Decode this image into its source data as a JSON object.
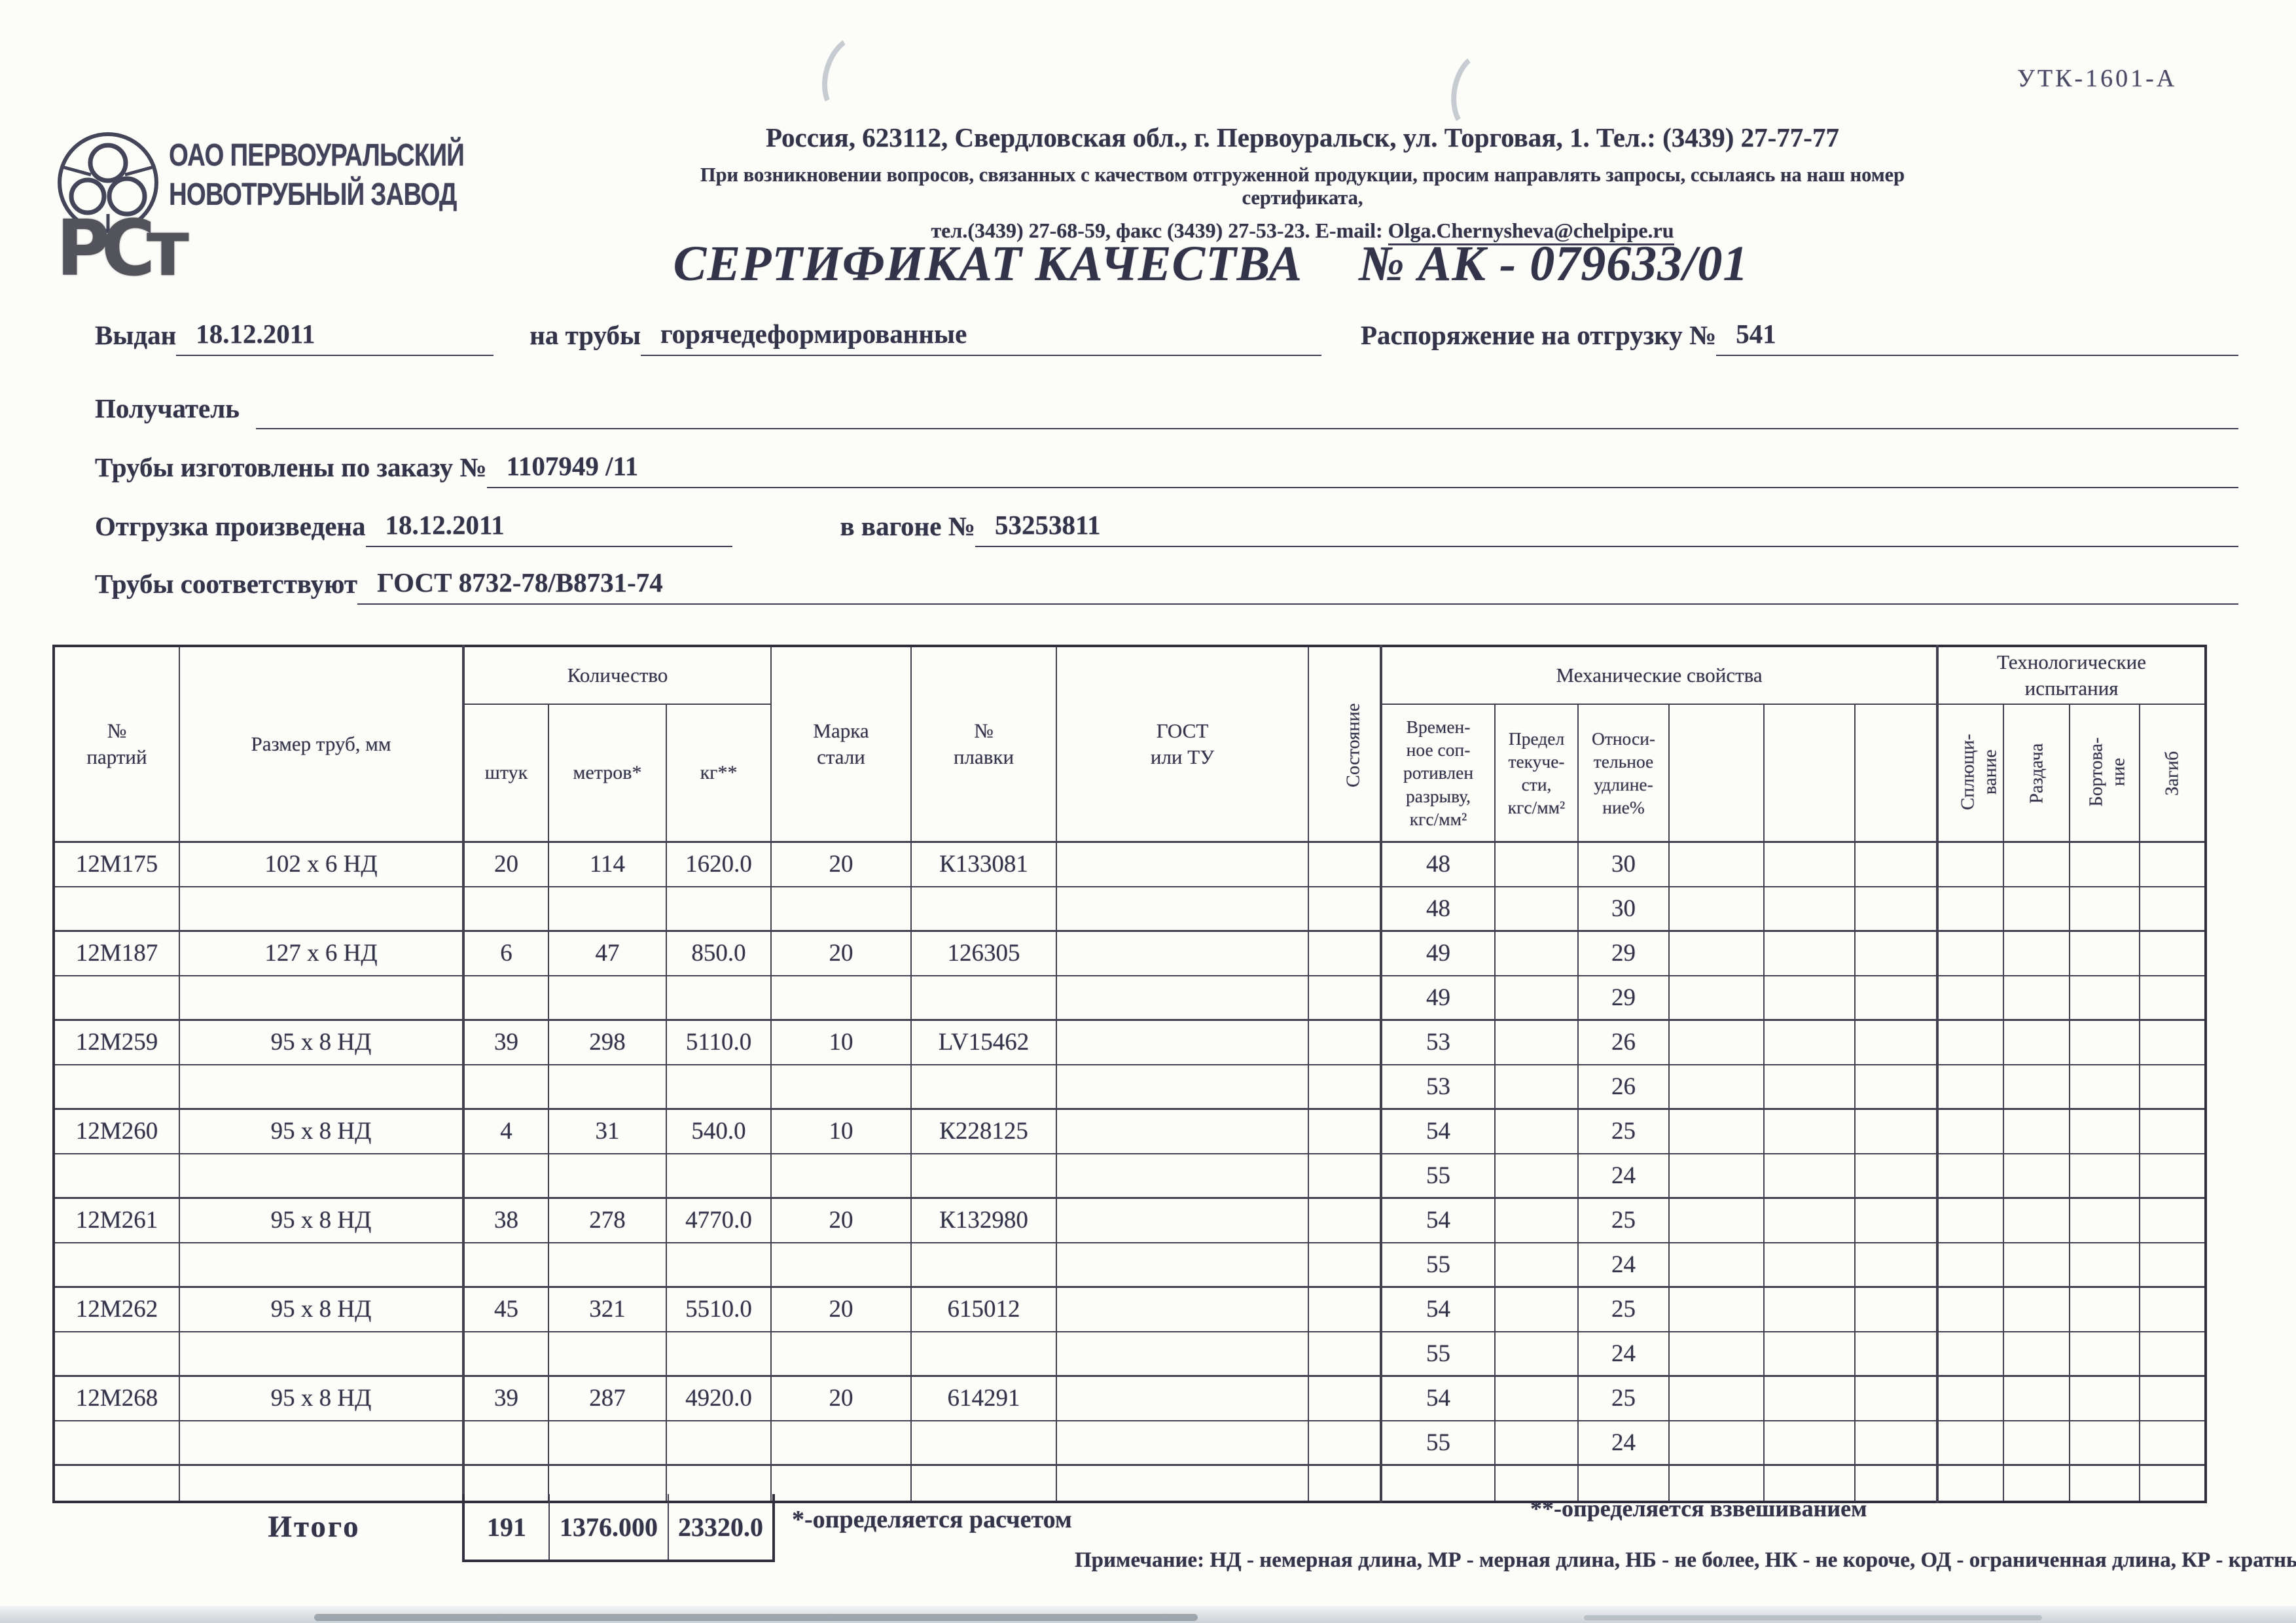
{
  "form_code": "УТК-1601-А",
  "logo": {
    "org_name": "ОАО ПЕРВОУРАЛЬСКИЙ\nНОВОТРУБНЫЙ ЗАВОД",
    "cert_mark": "РСт"
  },
  "header": {
    "address_line": "Россия, 623112, Свердловская обл., г. Первоуральск, ул. Торговая, 1. Тел.: (3439) 27-77-77",
    "note_line": "При возникновении вопросов, связанных с качеством отгруженной продукции, просим направлять запросы, ссылаясь на наш номер сертификата,",
    "contact_line_prefix": "тел.(3439) 27-68-59, факс (3439) 27-53-23. E-mail: ",
    "email": "Olga.Chernysheva@chelpipe.ru",
    "title": "СЕРТИФИКАТ КАЧЕСТВА",
    "title_number": "№  АК -  079633/01"
  },
  "fields": {
    "issued_label": "Выдан",
    "issued_value": "18.12.2011",
    "pipes_label": "на трубы",
    "pipes_value": "горячедеформированные",
    "order_label": "Распоряжение на отгрузку №",
    "order_value": "541",
    "receiver_label": "Получатель",
    "receiver_value": "",
    "made_by_order_label": "Трубы изготовлены по заказу №",
    "made_by_order_value": "1107949  /11",
    "shipped_label": "Отгрузка произведена",
    "shipped_value": "18.12.2011",
    "wagon_label": "в вагоне №",
    "wagon_value": "53253811",
    "conform_label": "Трубы соответствуют",
    "conform_value": "ГОСТ 8732-78/В8731-74"
  },
  "table": {
    "headers": {
      "party": "№\nпартий",
      "size": "Размер труб, мм",
      "qty_group": "Количество",
      "qty_pcs": "штук",
      "qty_m": "метров*",
      "qty_kg": "кг**",
      "steel": "Марка\nстали",
      "heat": "№\nплавки",
      "gost": "ГОСТ\nили ТУ",
      "state": "Состояние",
      "mech_group": "Механические свойства",
      "mech_tensile": "Времен-\nное соп-\nротивлен\nразрыву,\nкгс/мм²",
      "mech_yield": "Предел\nтекуче-\nсти,\nкгс/мм²",
      "mech_elong": "Относи-\nтельное\nудлине-\nние%",
      "tech_group": "Технологические\nиспытания",
      "tech_flatten": "Сплющи-\nвание",
      "tech_expand": "Раздача",
      "tech_flange": "Бортова-\nние",
      "tech_bend": "Загиб"
    },
    "rows": [
      [
        "12М175",
        "102 х 6 НД",
        "20",
        "114",
        "1620.0",
        "20",
        "К133081",
        "",
        "",
        "48",
        "",
        "30",
        "",
        "",
        "",
        "",
        "",
        "",
        ""
      ],
      [
        "",
        "",
        "",
        "",
        "",
        "",
        "",
        "",
        "",
        "48",
        "",
        "30",
        "",
        "",
        "",
        "",
        "",
        "",
        ""
      ],
      [
        "12М187",
        "127 х 6 НД",
        "6",
        "47",
        "850.0",
        "20",
        "126305",
        "",
        "",
        "49",
        "",
        "29",
        "",
        "",
        "",
        "",
        "",
        "",
        ""
      ],
      [
        "",
        "",
        "",
        "",
        "",
        "",
        "",
        "",
        "",
        "49",
        "",
        "29",
        "",
        "",
        "",
        "",
        "",
        "",
        ""
      ],
      [
        "12М259",
        "95 х 8 НД",
        "39",
        "298",
        "5110.0",
        "10",
        "LV15462",
        "",
        "",
        "53",
        "",
        "26",
        "",
        "",
        "",
        "",
        "",
        "",
        ""
      ],
      [
        "",
        "",
        "",
        "",
        "",
        "",
        "",
        "",
        "",
        "53",
        "",
        "26",
        "",
        "",
        "",
        "",
        "",
        "",
        ""
      ],
      [
        "12М260",
        "95 х 8 НД",
        "4",
        "31",
        "540.0",
        "10",
        "К228125",
        "",
        "",
        "54",
        "",
        "25",
        "",
        "",
        "",
        "",
        "",
        "",
        ""
      ],
      [
        "",
        "",
        "",
        "",
        "",
        "",
        "",
        "",
        "",
        "55",
        "",
        "24",
        "",
        "",
        "",
        "",
        "",
        "",
        ""
      ],
      [
        "12М261",
        "95 х 8 НД",
        "38",
        "278",
        "4770.0",
        "20",
        "К132980",
        "",
        "",
        "54",
        "",
        "25",
        "",
        "",
        "",
        "",
        "",
        "",
        ""
      ],
      [
        "",
        "",
        "",
        "",
        "",
        "",
        "",
        "",
        "",
        "55",
        "",
        "24",
        "",
        "",
        "",
        "",
        "",
        "",
        ""
      ],
      [
        "12М262",
        "95 х 8 НД",
        "45",
        "321",
        "5510.0",
        "20",
        "615012",
        "",
        "",
        "54",
        "",
        "25",
        "",
        "",
        "",
        "",
        "",
        "",
        ""
      ],
      [
        "",
        "",
        "",
        "",
        "",
        "",
        "",
        "",
        "",
        "55",
        "",
        "24",
        "",
        "",
        "",
        "",
        "",
        "",
        ""
      ],
      [
        "12М268",
        "95 х 8 НД",
        "39",
        "287",
        "4920.0",
        "20",
        "614291",
        "",
        "",
        "54",
        "",
        "25",
        "",
        "",
        "",
        "",
        "",
        "",
        ""
      ],
      [
        "",
        "",
        "",
        "",
        "",
        "",
        "",
        "",
        "",
        "55",
        "",
        "24",
        "",
        "",
        "",
        "",
        "",
        "",
        ""
      ],
      [
        "",
        "",
        "",
        "",
        "",
        "",
        "",
        "",
        "",
        "",
        "",
        "",
        "",
        "",
        "",
        "",
        "",
        "",
        ""
      ]
    ],
    "total_label": "Итого",
    "totals": [
      "191",
      "1376.000",
      "23320.0"
    ]
  },
  "footnotes": {
    "star": "*-определяется расчетом",
    "double_star": "**-определяется взвешиванием",
    "note": "Примечание: НД - немерная длина, МР - мерная длина, НБ - не более, НК - не короче, ОД - ограниченная длина, КР - кратные"
  },
  "colors": {
    "ink": "#33334a",
    "table_border": "#40404f",
    "artifact_gray": "#c6ccd2",
    "scan_edge": "#ccd3d8"
  }
}
